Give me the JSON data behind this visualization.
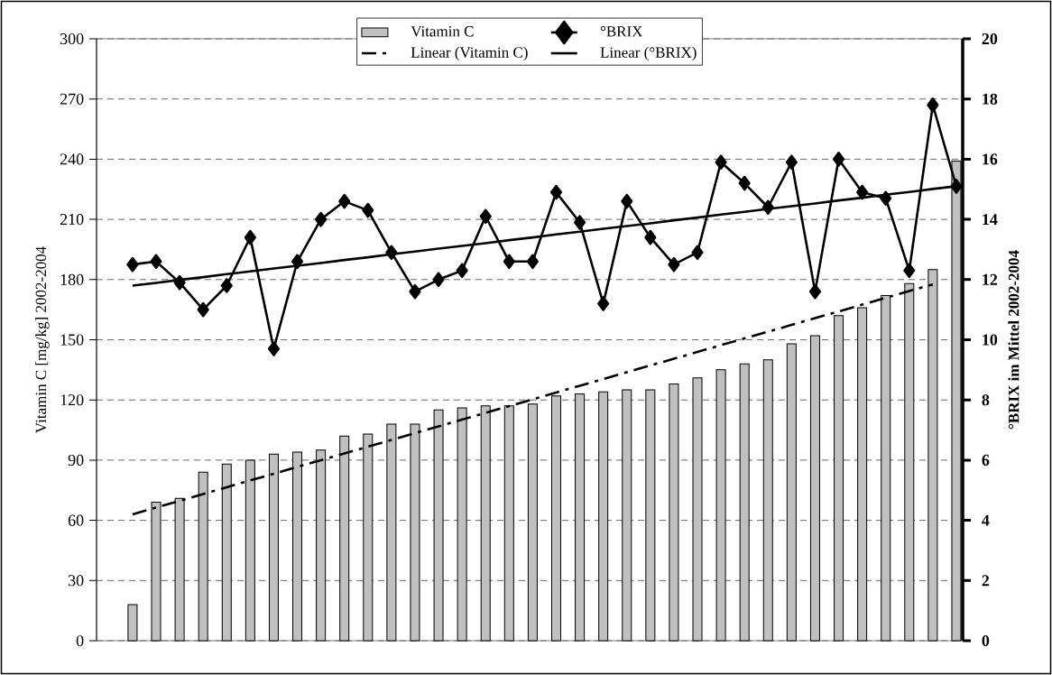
{
  "chart_data": {
    "type": "bar",
    "ylabel": "Vitamin C [mg/kg] 2002-2004",
    "y2label": "°BRIX im Mittel 2002-2004",
    "categories": [
      null,
      null,
      null,
      null,
      null,
      null,
      null,
      null,
      null,
      null,
      null,
      null,
      null,
      null,
      null,
      null,
      null,
      null,
      null,
      null,
      null,
      null,
      null,
      null,
      null,
      null,
      null,
      null,
      null,
      null,
      null,
      null,
      null,
      null,
      null,
      null
    ],
    "series": [
      {
        "name": "Vitamin C",
        "color": "#c0c0c0",
        "values": [
          18,
          69,
          71,
          84,
          88,
          90,
          93,
          94,
          95,
          102,
          103,
          108,
          108,
          115,
          116,
          117,
          117,
          118,
          122,
          123,
          124,
          125,
          125,
          128,
          131,
          135,
          138,
          140,
          148,
          152,
          162,
          166,
          172,
          178,
          185,
          239
        ]
      },
      {
        "name": "°BRIX",
        "type": "line",
        "axis": "y2",
        "color": "#000000",
        "marker": "diamond",
        "values": [
          12.5,
          12.6,
          11.9,
          11.0,
          11.8,
          13.4,
          9.7,
          12.6,
          14.0,
          14.6,
          14.3,
          12.9,
          11.6,
          12.0,
          12.3,
          14.1,
          12.6,
          12.6,
          14.9,
          13.9,
          11.2,
          14.6,
          13.4,
          12.5,
          12.9,
          15.9,
          15.2,
          14.4,
          15.9,
          11.6,
          16.0,
          14.9,
          14.7,
          12.3,
          17.8,
          15.1
        ]
      },
      {
        "name": "Linear (Vitamin C)",
        "type": "line",
        "color": "#000000",
        "line_style": "dashed",
        "values": [
          63.0,
          66.4,
          69.7,
          73.1,
          76.5,
          79.9,
          83.2,
          86.6,
          90.0,
          93.3,
          96.7,
          100.1,
          103.5,
          106.8,
          110.2,
          113.6,
          116.9,
          120.3,
          123.7,
          127.1,
          130.4,
          133.8,
          137.2,
          140.5,
          143.9,
          147.3,
          150.7,
          154.0,
          157.4,
          160.8,
          164.1,
          167.5,
          170.9,
          174.3,
          177.6,
          null
        ]
      },
      {
        "name": "Linear (°BRIX)",
        "type": "line",
        "axis": "y2",
        "color": "#000000",
        "line_style": "solid",
        "values": [
          11.8,
          11.89,
          11.99,
          12.08,
          12.18,
          12.27,
          12.37,
          12.46,
          12.55,
          12.65,
          12.74,
          12.84,
          12.93,
          13.03,
          13.12,
          13.21,
          13.31,
          13.4,
          13.5,
          13.59,
          13.69,
          13.78,
          13.87,
          13.97,
          14.06,
          14.16,
          14.25,
          14.35,
          14.44,
          14.53,
          14.63,
          14.72,
          14.82,
          14.91,
          15.01,
          15.1
        ]
      }
    ],
    "ylim": [
      0,
      300
    ],
    "yticks": [
      0,
      30,
      60,
      90,
      120,
      150,
      180,
      210,
      240,
      270,
      300
    ],
    "y2lim": [
      0,
      20
    ],
    "y2ticks": [
      0,
      2,
      4,
      6,
      8,
      10,
      12,
      14,
      16,
      18,
      20
    ],
    "grid": "y",
    "legend": "top",
    "tick_labels": "y"
  }
}
